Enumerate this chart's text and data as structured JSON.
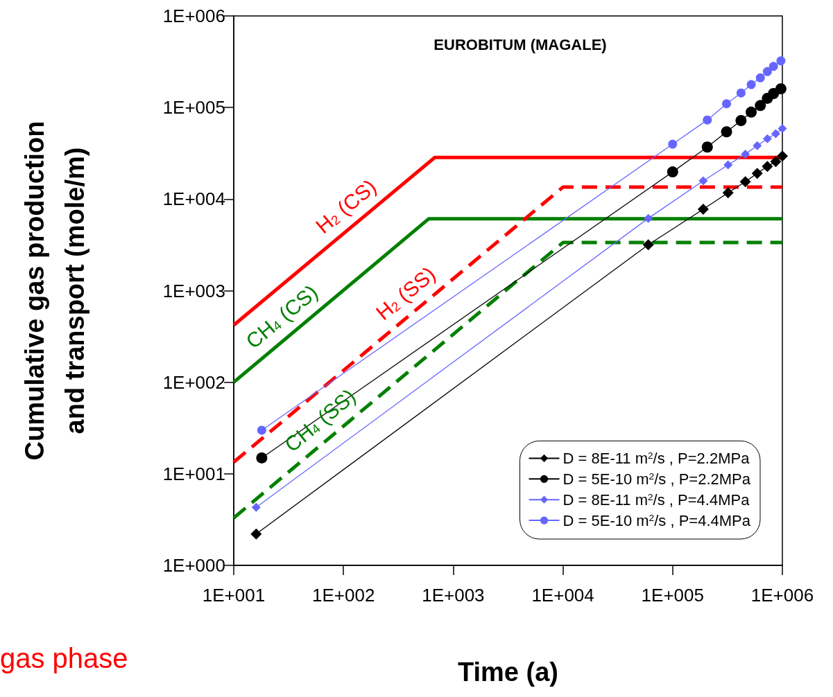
{
  "chart_data": {
    "type": "line",
    "title": "EUROBITUM (MAGALE)",
    "xlabel": "Time (a)",
    "ylabel": "Cumulative gas production\nand transport (mole/m)",
    "log": "xy",
    "grid": false,
    "legend": "bottom right",
    "xlim": [
      10,
      1000000
    ],
    "xticks": [
      {
        "value": 10,
        "label": "1E+001"
      },
      {
        "value": 100,
        "label": "1E+002"
      },
      {
        "value": 1000,
        "label": "1E+003"
      },
      {
        "value": 10000,
        "label": "1E+004"
      },
      {
        "value": 100000,
        "label": "1E+005"
      },
      {
        "value": 1000000,
        "label": "1E+006"
      }
    ],
    "ylim": [
      1,
      1000000
    ],
    "yticks": [
      {
        "value": 1,
        "label": "1E+000"
      },
      {
        "value": 10,
        "label": "1E+001"
      },
      {
        "value": 100,
        "label": "1E+002"
      },
      {
        "value": 1000,
        "label": "1E+003"
      },
      {
        "value": 10000,
        "label": "1E+004"
      },
      {
        "value": 100000,
        "label": "1E+005"
      },
      {
        "value": 1000000,
        "label": "1E+006"
      }
    ],
    "annotations": [
      "gas phase"
    ],
    "series": [
      {
        "name": "H$_{2}$ (CS)",
        "color": "#ff0000",
        "line_style": "solid",
        "marker": "none",
        "x": [
          10,
          680,
          1000000
        ],
        "values": [
          420,
          28500,
          28500
        ]
      },
      {
        "name": "CH$_{4}$ (CS)",
        "color": "#008000",
        "line_style": "solid",
        "marker": "none",
        "x": [
          10,
          600,
          1000000
        ],
        "values": [
          100,
          6100,
          6100
        ]
      },
      {
        "name": "H$_{2}$ (SS)",
        "color": "#ff0000",
        "line_style": "dashed",
        "marker": "none",
        "x": [
          10,
          10000,
          1000000
        ],
        "values": [
          13.4,
          13500,
          13500
        ]
      },
      {
        "name": "CH$_{4}$ (SS)",
        "color": "#008000",
        "line_style": "dashed",
        "marker": "none",
        "x": [
          10,
          10000,
          1000000
        ],
        "values": [
          3.3,
          3350,
          3350
        ]
      },
      {
        "name": "D = 8E-11 m$^{2}$/s , P=2.2MPa",
        "color": "#000000",
        "line_style": "solid",
        "marker": "diamond",
        "x": [
          16,
          60000,
          190000,
          320000,
          460000,
          590000,
          730000,
          870000,
          1000000
        ],
        "values": [
          2.2,
          3170,
          7750,
          11700,
          15500,
          19100,
          22700,
          25700,
          29500
        ]
      },
      {
        "name": "D = 5E-10 m$^{2}$/s , P=2.2MPa",
        "color": "#000000",
        "line_style": "solid",
        "marker": "circle",
        "x": [
          18,
          100000,
          207000,
          310000,
          420000,
          520000,
          630000,
          730000,
          830000,
          970000
        ],
        "values": [
          14.9,
          19800,
          37000,
          54300,
          72000,
          89000,
          105000,
          126000,
          142000,
          160000
        ]
      },
      {
        "name": "D = 8E-11 m$^{2}$/s , P=4.4MPa",
        "color": "#6666ff",
        "line_style": "solid",
        "marker": "diamond",
        "x": [
          16,
          60000,
          190000,
          320000,
          460000,
          590000,
          730000,
          870000,
          1000000
        ],
        "values": [
          4.3,
          6160,
          15800,
          23600,
          31000,
          38300,
          45600,
          51800,
          59000
        ]
      },
      {
        "name": "D = 5E-10 m$^{2}$/s , P=4.4MPa",
        "color": "#6666ff",
        "line_style": "solid",
        "marker": "circle",
        "x": [
          18,
          100000,
          207000,
          310000,
          420000,
          520000,
          630000,
          730000,
          830000,
          970000
        ],
        "values": [
          29.9,
          39800,
          73100,
          110000,
          144000,
          178000,
          211000,
          247000,
          281000,
          323000
        ]
      }
    ]
  }
}
